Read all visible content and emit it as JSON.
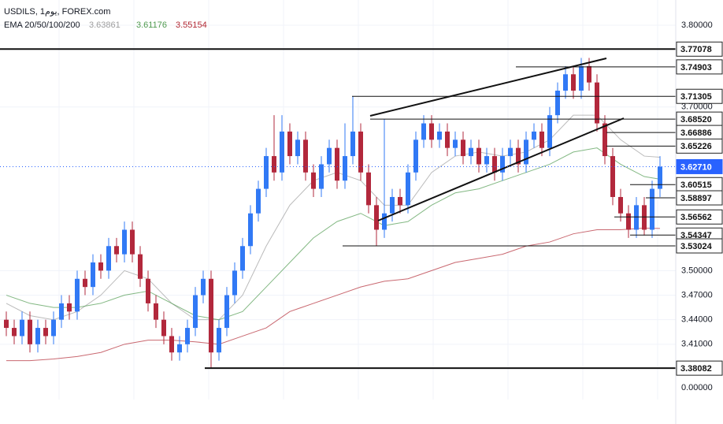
{
  "chart_data": {
    "type": "candlestick",
    "title": "USDILS, 1يوم, FOREX.com",
    "subtitle": "EMA 20/50/100/200",
    "bottom_label": "0.00000",
    "up_color": "#3179f5",
    "down_color": "#b2283c",
    "grid": true,
    "ylim": [
      3.3424,
      3.8308
    ],
    "yticks": [
      {
        "value": 3.8,
        "label": "3.80000"
      },
      {
        "value": 3.7,
        "label": "3.70000"
      },
      {
        "value": 3.5,
        "label": "3.50000"
      },
      {
        "value": 3.47,
        "label": "3.47000"
      },
      {
        "value": 3.44,
        "label": "3.44000"
      },
      {
        "value": 3.41,
        "label": "3.41000"
      }
    ],
    "open": [
      3.44,
      3.43,
      3.42,
      3.44,
      3.41,
      3.43,
      3.42,
      3.44,
      3.46,
      3.45,
      3.49,
      3.48,
      3.51,
      3.5,
      3.53,
      3.52,
      3.55,
      3.52,
      3.49,
      3.46,
      3.44,
      3.42,
      3.4,
      3.41,
      3.43,
      3.47,
      3.49,
      3.4,
      3.43,
      3.47,
      3.5,
      3.53,
      3.57,
      3.6,
      3.64,
      3.62,
      3.67,
      3.64,
      3.66,
      3.62,
      3.6,
      3.63,
      3.65,
      3.61,
      3.64,
      3.67,
      3.62,
      3.58,
      3.55,
      3.57,
      3.59,
      3.58,
      3.62,
      3.66,
      3.68,
      3.66,
      3.67,
      3.65,
      3.66,
      3.64,
      3.65,
      3.63,
      3.64,
      3.62,
      3.64,
      3.65,
      3.63,
      3.66,
      3.67,
      3.65,
      3.69,
      3.72,
      3.74,
      3.72,
      3.75,
      3.73,
      3.68,
      3.64,
      3.59,
      3.57,
      3.55,
      3.58,
      3.55,
      3.6
    ],
    "high": [
      3.45,
      3.44,
      3.45,
      3.45,
      3.44,
      3.44,
      3.45,
      3.47,
      3.47,
      3.5,
      3.5,
      3.52,
      3.52,
      3.54,
      3.54,
      3.56,
      3.56,
      3.53,
      3.5,
      3.47,
      3.45,
      3.43,
      3.42,
      3.44,
      3.48,
      3.5,
      3.5,
      3.44,
      3.48,
      3.51,
      3.54,
      3.58,
      3.61,
      3.65,
      3.69,
      3.69,
      3.68,
      3.67,
      3.67,
      3.63,
      3.64,
      3.66,
      3.66,
      3.68,
      3.713,
      3.68,
      3.63,
      3.59,
      3.685,
      3.6,
      3.6,
      3.63,
      3.67,
      3.69,
      3.69,
      3.68,
      3.68,
      3.67,
      3.67,
      3.66,
      3.66,
      3.65,
      3.65,
      3.65,
      3.66,
      3.66,
      3.67,
      3.68,
      3.68,
      3.7,
      3.73,
      3.75,
      3.75,
      3.76,
      3.76,
      3.74,
      3.69,
      3.65,
      3.6,
      3.58,
      3.59,
      3.59,
      3.61,
      3.64
    ],
    "low": [
      3.42,
      3.41,
      3.41,
      3.4,
      3.4,
      3.41,
      3.41,
      3.43,
      3.44,
      3.44,
      3.47,
      3.47,
      3.49,
      3.49,
      3.51,
      3.51,
      3.51,
      3.48,
      3.45,
      3.43,
      3.41,
      3.39,
      3.39,
      3.4,
      3.42,
      3.46,
      3.381,
      3.39,
      3.42,
      3.46,
      3.49,
      3.52,
      3.56,
      3.59,
      3.61,
      3.61,
      3.63,
      3.63,
      3.61,
      3.59,
      3.59,
      3.62,
      3.6,
      3.6,
      3.63,
      3.61,
      3.57,
      3.53,
      3.54,
      3.56,
      3.57,
      3.57,
      3.61,
      3.65,
      3.65,
      3.65,
      3.64,
      3.64,
      3.63,
      3.63,
      3.62,
      3.62,
      3.61,
      3.61,
      3.63,
      3.62,
      3.62,
      3.65,
      3.64,
      3.64,
      3.68,
      3.71,
      3.71,
      3.71,
      3.72,
      3.67,
      3.63,
      3.58,
      3.56,
      3.54,
      3.54,
      3.543,
      3.54,
      3.59
    ],
    "close": [
      3.43,
      3.42,
      3.44,
      3.41,
      3.43,
      3.42,
      3.44,
      3.46,
      3.45,
      3.49,
      3.48,
      3.51,
      3.5,
      3.53,
      3.52,
      3.55,
      3.52,
      3.49,
      3.46,
      3.44,
      3.42,
      3.4,
      3.41,
      3.43,
      3.47,
      3.49,
      3.4,
      3.43,
      3.47,
      3.5,
      3.53,
      3.57,
      3.6,
      3.64,
      3.62,
      3.67,
      3.64,
      3.66,
      3.62,
      3.6,
      3.63,
      3.65,
      3.61,
      3.64,
      3.67,
      3.62,
      3.58,
      3.55,
      3.57,
      3.59,
      3.58,
      3.62,
      3.66,
      3.68,
      3.66,
      3.67,
      3.65,
      3.66,
      3.64,
      3.65,
      3.63,
      3.64,
      3.62,
      3.64,
      3.65,
      3.63,
      3.66,
      3.67,
      3.65,
      3.69,
      3.72,
      3.74,
      3.72,
      3.75,
      3.73,
      3.68,
      3.64,
      3.59,
      3.57,
      3.55,
      3.58,
      3.55,
      3.6,
      3.6271
    ],
    "series": [
      {
        "color": "#9e9e9e",
        "x": [
          0,
          3,
          6,
          9,
          12,
          15,
          18,
          21,
          24,
          27,
          30,
          33,
          36,
          39,
          42,
          45,
          48,
          51,
          54,
          57,
          60,
          63,
          66,
          69,
          72,
          75,
          78,
          81,
          83
        ],
        "values": [
          3.46,
          3.445,
          3.44,
          3.45,
          3.47,
          3.5,
          3.49,
          3.46,
          3.44,
          3.44,
          3.47,
          3.53,
          3.58,
          3.61,
          3.62,
          3.61,
          3.58,
          3.58,
          3.62,
          3.64,
          3.645,
          3.64,
          3.645,
          3.66,
          3.69,
          3.69,
          3.66,
          3.64,
          3.63861
        ]
      },
      {
        "color": "#4f9a4f",
        "x": [
          0,
          3,
          6,
          9,
          12,
          15,
          18,
          21,
          24,
          27,
          30,
          33,
          36,
          39,
          42,
          45,
          48,
          51,
          54,
          57,
          60,
          63,
          66,
          69,
          72,
          75,
          78,
          81,
          83
        ],
        "values": [
          3.47,
          3.46,
          3.455,
          3.455,
          3.46,
          3.47,
          3.475,
          3.46,
          3.445,
          3.44,
          3.45,
          3.48,
          3.51,
          3.54,
          3.56,
          3.57,
          3.555,
          3.56,
          3.58,
          3.595,
          3.6,
          3.61,
          3.62,
          3.63,
          3.645,
          3.65,
          3.63,
          3.615,
          3.61176
        ]
      },
      {
        "color": "#b22833",
        "x": [
          0,
          3,
          6,
          9,
          12,
          15,
          18,
          21,
          24,
          27,
          30,
          33,
          36,
          39,
          42,
          45,
          48,
          51,
          54,
          57,
          60,
          63,
          66,
          69,
          72,
          75,
          78,
          81,
          83
        ],
        "values": [
          3.39,
          3.39,
          3.392,
          3.395,
          3.4,
          3.41,
          3.415,
          3.415,
          3.413,
          3.41,
          3.42,
          3.43,
          3.45,
          3.46,
          3.47,
          3.48,
          3.487,
          3.49,
          3.5,
          3.51,
          3.515,
          3.52,
          3.53,
          3.535,
          3.545,
          3.55,
          3.55,
          3.552,
          3.55154
        ]
      }
    ],
    "levels": [
      3.77078,
      3.74903,
      3.71305,
      {
        "value": 3.6852,
        "label": "3.68520"
      },
      3.66886,
      3.65226,
      {
        "value": 3.6271,
        "label": "3.62710",
        "color": "#2962ff"
      },
      3.60515,
      3.58897,
      3.56562,
      3.54347,
      3.53024,
      3.38082
    ]
  }
}
